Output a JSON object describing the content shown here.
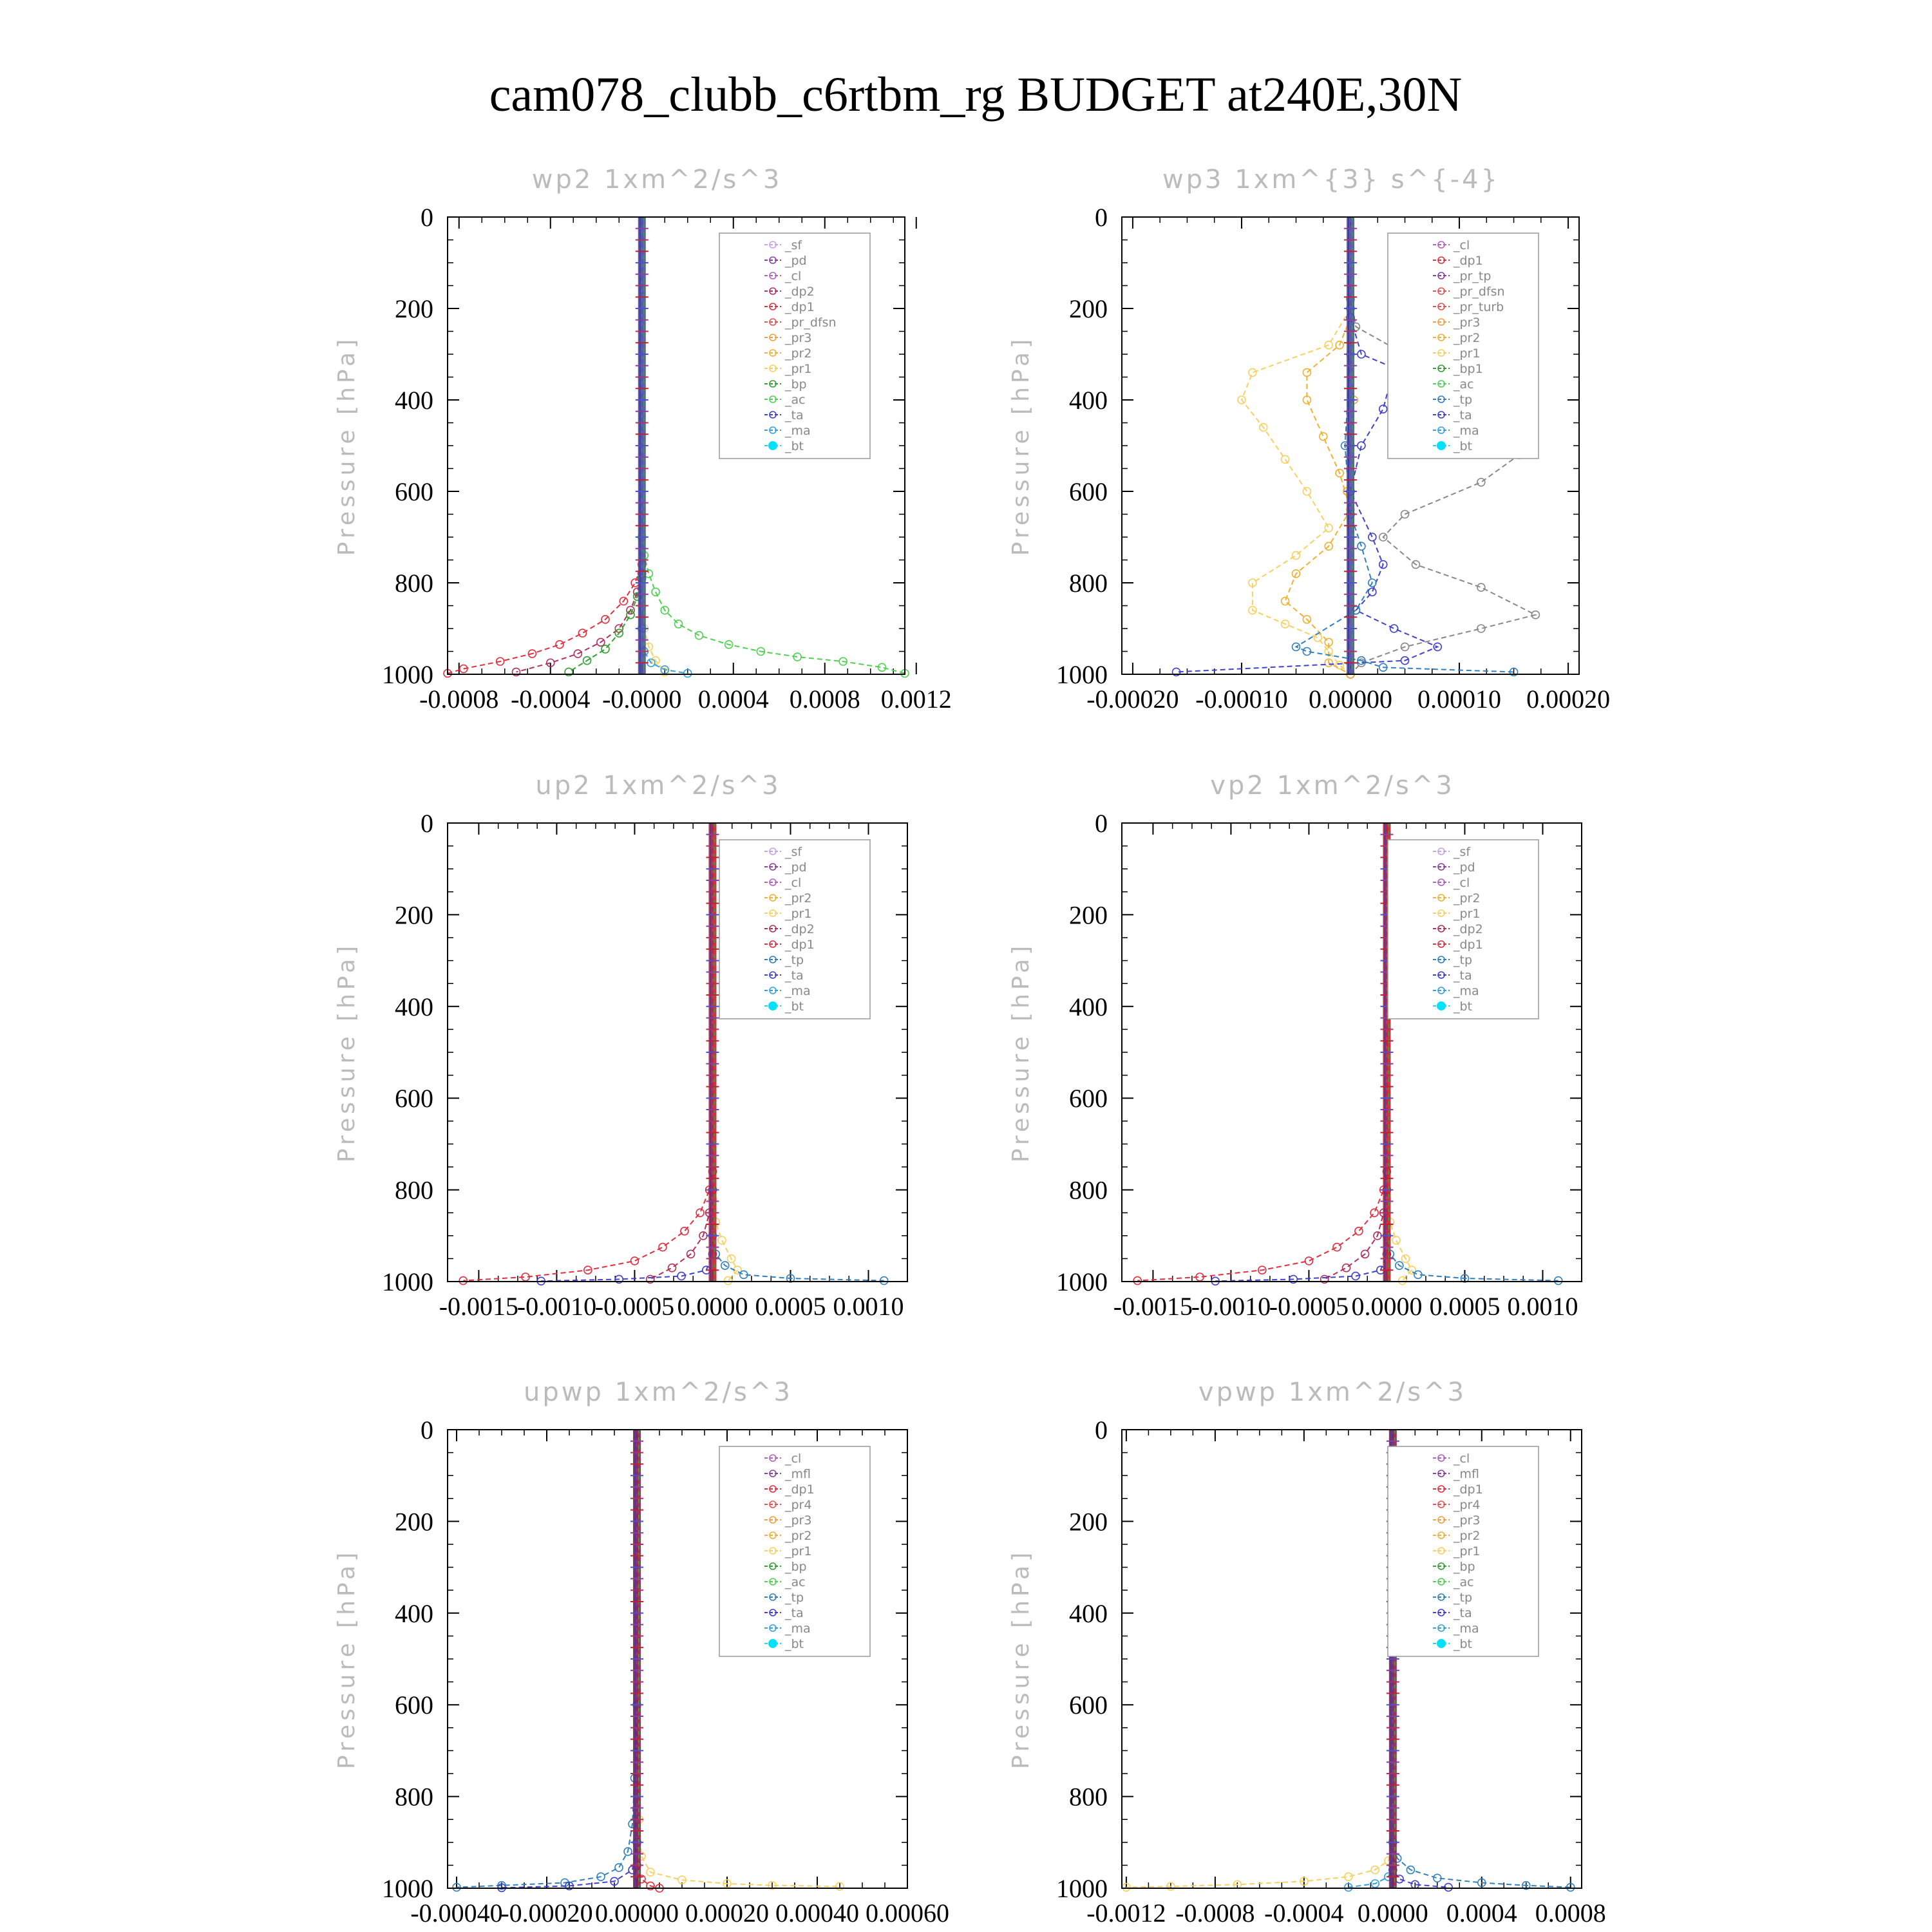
{
  "title": "cam078_clubb_c6rtbm_rg  BUDGET at240E,30N",
  "colors": {
    "_sf": "#c8a0e8",
    "_pd": "#8a3fa0",
    "_cl": "#b060c0",
    "_mfl": "#8a3fa0",
    "_dp2": "#b03060",
    "_dp1": "#e03040",
    "_pr_dfsn": "#e85050",
    "_pr_tp": "#8a3fa0",
    "_pr_turb": "#e85050",
    "_pr4": "#e85050",
    "_pr3": "#f0a040",
    "_pr2": "#f0b030",
    "_pr1": "#f8d060",
    "_bp": "#30a030",
    "_ac": "#50d050",
    "_tp": "#3080c0",
    "_ta": "#4040d0",
    "_ma": "#30a0e0",
    "_bt": "#00e0ff"
  },
  "chart_data": [
    {
      "type": "line",
      "title": "wp2  1xm^2/s^3",
      "ylabel": "Pressure [hPa]",
      "xlim": [
        -0.00085,
        0.00115
      ],
      "ylim": [
        1000,
        0
      ],
      "xticks": [
        "-0.0008",
        "-0.0004",
        "-0.0000",
        "0.0004",
        "0.0008",
        "0.0012"
      ],
      "xtick_values": [
        -0.0008,
        -0.0004,
        0.0,
        0.0004,
        0.0008,
        0.0012
      ],
      "yticks": [
        0,
        200,
        400,
        600,
        800,
        1000
      ],
      "legend": [
        "_sf",
        "_pd",
        "_cl",
        "_dp2",
        "_dp1",
        "_pr_dfsn",
        "_pr3",
        "_pr2",
        "_pr1",
        "_bp",
        "_ac",
        "_ta",
        "_ma",
        "_bt"
      ],
      "series": [
        {
          "name": "_ac",
          "x": [
            0,
            0,
            1e-05,
            3e-05,
            6e-05,
            0.0001,
            0.00016,
            0.00025,
            0.00038,
            0.00052,
            0.00068,
            0.00088,
            0.00105,
            0.00115
          ],
          "y": [
            0,
            700,
            740,
            780,
            820,
            860,
            890,
            915,
            935,
            950,
            962,
            972,
            985,
            998
          ]
        },
        {
          "name": "_dp1",
          "x": [
            0,
            0,
            -3e-05,
            -8e-05,
            -0.00016,
            -0.00026,
            -0.00036,
            -0.00048,
            -0.00062,
            -0.00078,
            -0.00085
          ],
          "y": [
            0,
            760,
            800,
            840,
            880,
            910,
            935,
            955,
            972,
            988,
            998
          ]
        },
        {
          "name": "_dp2",
          "x": [
            0,
            0,
            -2e-05,
            -5e-05,
            -0.0001,
            -0.00018,
            -0.00028,
            -0.0004,
            -0.00055
          ],
          "y": [
            0,
            780,
            820,
            860,
            900,
            930,
            955,
            975,
            995
          ]
        },
        {
          "name": "_bp",
          "x": [
            0,
            0,
            -2e-05,
            -5e-05,
            -0.0001,
            -0.00016,
            -0.00024,
            -0.00032
          ],
          "y": [
            0,
            790,
            830,
            870,
            910,
            945,
            970,
            995
          ]
        },
        {
          "name": "_pr1",
          "x": [
            0,
            0,
            1e-05,
            3e-05,
            6e-05,
            0.0001
          ],
          "y": [
            0,
            850,
            900,
            940,
            970,
            995
          ]
        },
        {
          "name": "_ma",
          "x": [
            0,
            0,
            1e-05,
            4e-05,
            0.0001,
            0.0002
          ],
          "y": [
            0,
            900,
            950,
            975,
            990,
            998
          ]
        }
      ]
    },
    {
      "type": "line",
      "title": "wp3  1xm^{3} s^{-4}",
      "ylabel": "Pressure [hPa]",
      "xlim": [
        -0.00021,
        0.00021
      ],
      "ylim": [
        1000,
        0
      ],
      "xticks": [
        "-0.00020",
        "-0.00010",
        "0.00000",
        "0.00010",
        "0.00020"
      ],
      "xtick_values": [
        -0.0002,
        -0.0001,
        0.0,
        0.0001,
        0.0002
      ],
      "yticks": [
        0,
        200,
        400,
        600,
        800,
        1000
      ],
      "legend": [
        "_cl",
        "_dp1",
        "_pr_tp",
        "_pr_dfsn",
        "_pr_turb",
        "_pr3",
        "_pr2",
        "_pr1",
        "_bp1",
        "_ac",
        "_tp",
        "_ta",
        "_ma",
        "_bt"
      ],
      "series": [
        {
          "name": "_bp1",
          "x": [
            0,
            0,
            5e-06,
            5e-05,
            0.00012,
            0.00016,
            0.000155,
            0.00015,
            0.000155,
            0.00012,
            5e-05,
            3e-05,
            6e-05,
            0.00012,
            0.00017,
            0.00012,
            5e-05,
            1e-05,
            0
          ],
          "y": [
            0,
            180,
            240,
            300,
            340,
            370,
            420,
            480,
            520,
            580,
            650,
            700,
            760,
            810,
            870,
            900,
            940,
            975,
            1000
          ]
        },
        {
          "name": "_pr1",
          "x": [
            0,
            0,
            -2e-05,
            -9e-05,
            -0.0001,
            -8e-05,
            -6e-05,
            -4e-05,
            -2e-05,
            -5e-05,
            -9e-05,
            -9e-05,
            -6e-05,
            -3e-05,
            -2e-05,
            -1e-05,
            0
          ],
          "y": [
            0,
            200,
            280,
            340,
            400,
            460,
            530,
            600,
            680,
            740,
            800,
            860,
            890,
            920,
            950,
            980,
            1000
          ]
        },
        {
          "name": "_pr2",
          "x": [
            0,
            0,
            -1e-05,
            -4e-05,
            -4e-05,
            -2.5e-05,
            -1e-05,
            0,
            -2e-05,
            -5e-05,
            -6e-05,
            -4e-05,
            -2e-05,
            -2e-05,
            0
          ],
          "y": [
            0,
            220,
            280,
            340,
            400,
            480,
            560,
            640,
            720,
            780,
            840,
            880,
            930,
            975,
            1000
          ]
        },
        {
          "name": "_ta",
          "x": [
            0,
            0,
            1e-05,
            4e-05,
            3e-05,
            1e-05,
            0,
            2e-05,
            3e-05,
            2e-05,
            5e-06,
            4e-05,
            8e-05,
            5e-05,
            -0.00016
          ],
          "y": [
            0,
            220,
            300,
            330,
            420,
            500,
            600,
            700,
            760,
            820,
            860,
            900,
            940,
            970,
            995
          ]
        },
        {
          "name": "_tp",
          "x": [
            0,
            0,
            0,
            -5e-06,
            0,
            1e-05,
            2e-05,
            5e-06,
            -5e-05,
            -4e-05,
            1e-05,
            3e-05,
            0.00015
          ],
          "y": [
            0,
            200,
            300,
            500,
            650,
            720,
            800,
            860,
            940,
            950,
            970,
            985,
            995
          ]
        },
        {
          "name": "_pr3",
          "x": [
            0,
            0,
            3e-06,
            0,
            -3e-06,
            0
          ],
          "y": [
            0,
            300,
            400,
            500,
            600,
            1000
          ]
        }
      ]
    },
    {
      "type": "line",
      "title": "up2  1xm^2/s^3",
      "ylabel": "Pressure [hPa]",
      "xlim": [
        -0.0017,
        0.00125
      ],
      "ylim": [
        1000,
        0
      ],
      "xticks": [
        "-0.0015",
        "-0.0010",
        "-0.0005",
        "0.0000",
        "0.0005",
        "0.0010"
      ],
      "xtick_values": [
        -0.0015,
        -0.001,
        -0.0005,
        0.0,
        0.0005,
        0.001
      ],
      "yticks": [
        0,
        200,
        400,
        600,
        800,
        1000
      ],
      "legend": [
        "_sf",
        "_pd",
        "_cl",
        "_pr2",
        "_pr1",
        "_dp2",
        "_dp1",
        "_tp",
        "_ta",
        "_ma",
        "_bt"
      ],
      "series": [
        {
          "name": "_dp1",
          "x": [
            0,
            0,
            -2e-05,
            -8e-05,
            -0.00018,
            -0.00032,
            -0.0005,
            -0.0008,
            -0.0012,
            -0.0016
          ],
          "y": [
            0,
            760,
            800,
            850,
            890,
            925,
            955,
            975,
            990,
            998
          ]
        },
        {
          "name": "_dp2",
          "x": [
            0,
            0,
            -2e-05,
            -6e-05,
            -0.00014,
            -0.00026,
            -0.0004
          ],
          "y": [
            0,
            800,
            850,
            900,
            940,
            970,
            995
          ]
        },
        {
          "name": "_pr1",
          "x": [
            0,
            0,
            2e-05,
            6e-05,
            0.00012,
            0.00016,
            0.0001
          ],
          "y": [
            0,
            820,
            870,
            910,
            950,
            975,
            998
          ]
        },
        {
          "name": "_tp",
          "x": [
            0,
            0,
            2e-05,
            8e-05,
            0.0002,
            0.0005,
            0.0011
          ],
          "y": [
            0,
            900,
            940,
            965,
            985,
            993,
            998
          ]
        },
        {
          "name": "_ta",
          "x": [
            0,
            0,
            -4e-05,
            -0.0002,
            -0.0006,
            -0.0011
          ],
          "y": [
            0,
            940,
            975,
            988,
            995,
            999
          ]
        }
      ]
    },
    {
      "type": "line",
      "title": "vp2  1xm^2/s^3",
      "ylabel": "Pressure [hPa]",
      "xlim": [
        -0.0017,
        0.00125
      ],
      "ylim": [
        1000,
        0
      ],
      "xticks": [
        "-0.0015",
        "-0.0010",
        "-0.0005",
        "0.0000",
        "0.0005",
        "0.0010"
      ],
      "xtick_values": [
        -0.0015,
        -0.001,
        -0.0005,
        0.0,
        0.0005,
        0.001
      ],
      "yticks": [
        0,
        200,
        400,
        600,
        800,
        1000
      ],
      "legend": [
        "_sf",
        "_pd",
        "_cl",
        "_pr2",
        "_pr1",
        "_dp2",
        "_dp1",
        "_tp",
        "_ta",
        "_ma",
        "_bt"
      ],
      "series": [
        {
          "name": "_dp1",
          "x": [
            0,
            0,
            -2e-05,
            -8e-05,
            -0.00018,
            -0.00032,
            -0.0005,
            -0.0008,
            -0.0012,
            -0.0016
          ],
          "y": [
            0,
            760,
            800,
            850,
            890,
            925,
            955,
            975,
            990,
            998
          ]
        },
        {
          "name": "_dp2",
          "x": [
            0,
            0,
            -2e-05,
            -6e-05,
            -0.00014,
            -0.00026,
            -0.0004
          ],
          "y": [
            0,
            800,
            850,
            900,
            940,
            970,
            995
          ]
        },
        {
          "name": "_pr1",
          "x": [
            0,
            0,
            2e-05,
            6e-05,
            0.00012,
            0.00016,
            0.0001
          ],
          "y": [
            0,
            820,
            870,
            910,
            950,
            975,
            998
          ]
        },
        {
          "name": "_tp",
          "x": [
            0,
            0,
            2e-05,
            8e-05,
            0.0002,
            0.0005,
            0.0011
          ],
          "y": [
            0,
            900,
            940,
            965,
            985,
            993,
            998
          ]
        },
        {
          "name": "_ta",
          "x": [
            0,
            0,
            -4e-05,
            -0.0002,
            -0.0006,
            -0.0011
          ],
          "y": [
            0,
            940,
            975,
            988,
            995,
            999
          ]
        }
      ]
    },
    {
      "type": "line",
      "title": "upwp  1xm^2/s^3",
      "ylabel": "Pressure [hPa]",
      "xlim": [
        -0.00042,
        0.0006
      ],
      "ylim": [
        1000,
        0
      ],
      "xticks": [
        "-0.00040",
        "-0.00020",
        "0.00000",
        "0.00020",
        "0.00040",
        "0.00060"
      ],
      "xtick_values": [
        -0.0004,
        -0.0002,
        0.0,
        0.0002,
        0.0004,
        0.0006
      ],
      "yticks": [
        0,
        200,
        400,
        600,
        800,
        1000
      ],
      "legend": [
        "_cl",
        "_mfl",
        "_dp1",
        "_pr4",
        "_pr3",
        "_pr2",
        "_pr1",
        "_bp",
        "_ac",
        "_tp",
        "_ta",
        "_ma",
        "_bt"
      ],
      "series": [
        {
          "name": "_tp",
          "x": [
            0,
            0,
            -5e-06,
            -1e-05,
            -2e-05,
            -4e-05,
            -8e-05,
            -0.00016,
            -0.0003,
            -0.0004
          ],
          "y": [
            0,
            600,
            760,
            860,
            920,
            955,
            975,
            988,
            994,
            998
          ]
        },
        {
          "name": "_pr1",
          "x": [
            0,
            0,
            5e-06,
            1e-05,
            3e-05,
            0.0001,
            0.0002,
            0.0003,
            0.00045
          ],
          "y": [
            0,
            700,
            850,
            930,
            965,
            982,
            990,
            994,
            996
          ]
        },
        {
          "name": "_ta",
          "x": [
            0,
            0,
            -1e-05,
            -5e-05,
            -0.00015,
            -0.0003
          ],
          "y": [
            0,
            900,
            960,
            985,
            995,
            999
          ]
        },
        {
          "name": "_dp1",
          "x": [
            0,
            0,
            1e-05,
            3e-05,
            5e-05
          ],
          "y": [
            0,
            950,
            980,
            995,
            1000
          ]
        }
      ]
    },
    {
      "type": "line",
      "title": "vpwp  1xm^2/s^3",
      "ylabel": "Pressure [hPa]",
      "xlim": [
        -0.00122,
        0.00085
      ],
      "ylim": [
        1000,
        0
      ],
      "xticks": [
        "-0.0012",
        "-0.0008",
        "-0.0004",
        "0.0000",
        "0.0004",
        "0.0008"
      ],
      "xtick_values": [
        -0.0012,
        -0.0008,
        -0.0004,
        0.0,
        0.0004,
        0.0008
      ],
      "yticks": [
        0,
        200,
        400,
        600,
        800,
        1000
      ],
      "legend": [
        "_cl",
        "_mfl",
        "_dp1",
        "_pr4",
        "_pr3",
        "_pr2",
        "_pr1",
        "_bp",
        "_ac",
        "_tp",
        "_ta",
        "_ma",
        "_bt"
      ],
      "series": [
        {
          "name": "_pr1",
          "x": [
            0,
            0,
            -2e-05,
            -8e-05,
            -0.0002,
            -0.0004,
            -0.0007,
            -0.001,
            -0.0012
          ],
          "y": [
            0,
            900,
            940,
            960,
            975,
            985,
            992,
            996,
            998
          ]
        },
        {
          "name": "_tp",
          "x": [
            0,
            0,
            2e-05,
            8e-05,
            0.0002,
            0.0004,
            0.0006,
            0.0008
          ],
          "y": [
            0,
            900,
            935,
            960,
            978,
            988,
            994,
            998
          ]
        },
        {
          "name": "_ta",
          "x": [
            0,
            0,
            3e-05,
            0.0001,
            0.00025
          ],
          "y": [
            0,
            960,
            980,
            992,
            998
          ]
        },
        {
          "name": "_ma",
          "x": [
            0,
            0,
            -2e-05,
            -8e-05,
            -0.0002
          ],
          "y": [
            0,
            950,
            975,
            990,
            998
          ]
        }
      ]
    }
  ]
}
